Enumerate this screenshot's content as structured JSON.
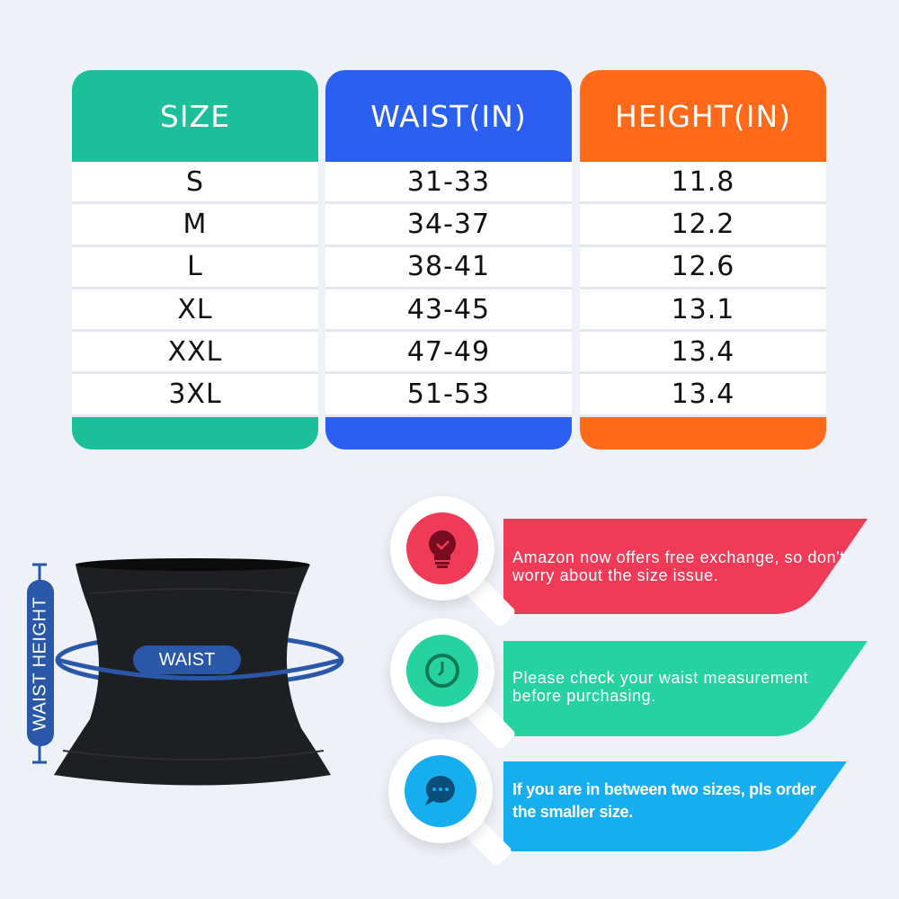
{
  "table": {
    "columns": [
      {
        "header": "SIZE",
        "color": "#1cbf9a",
        "values": [
          "S",
          "M",
          "L",
          "XL",
          "XXL",
          "3XL"
        ]
      },
      {
        "header": "WAIST(IN)",
        "color": "#2a5ff0",
        "values": [
          "31-33",
          "34-37",
          "38-41",
          "43-45",
          "47-49",
          "51-53"
        ]
      },
      {
        "header": "HEIGHT(IN)",
        "color": "#ff6a1a",
        "values": [
          "11.8",
          "12.2",
          "12.6",
          "13.1",
          "13.4",
          "13.4"
        ]
      }
    ]
  },
  "diagram": {
    "waist_label": "WAIST",
    "height_label": "WAIST HEIGHT",
    "accent": "#2b57a8"
  },
  "tips": [
    {
      "icon": "lightbulb-check-icon",
      "color": "#ef3b57",
      "text": "Amazon now offers free exchange, so don't worry about the size issue."
    },
    {
      "icon": "clock-icon",
      "color": "#26d3a0",
      "text": "Please check your waist measurement before purchasing."
    },
    {
      "icon": "chat-bubble-icon",
      "color": "#17aef0",
      "text": "If you are in between two sizes, pls order the smaller size."
    }
  ]
}
